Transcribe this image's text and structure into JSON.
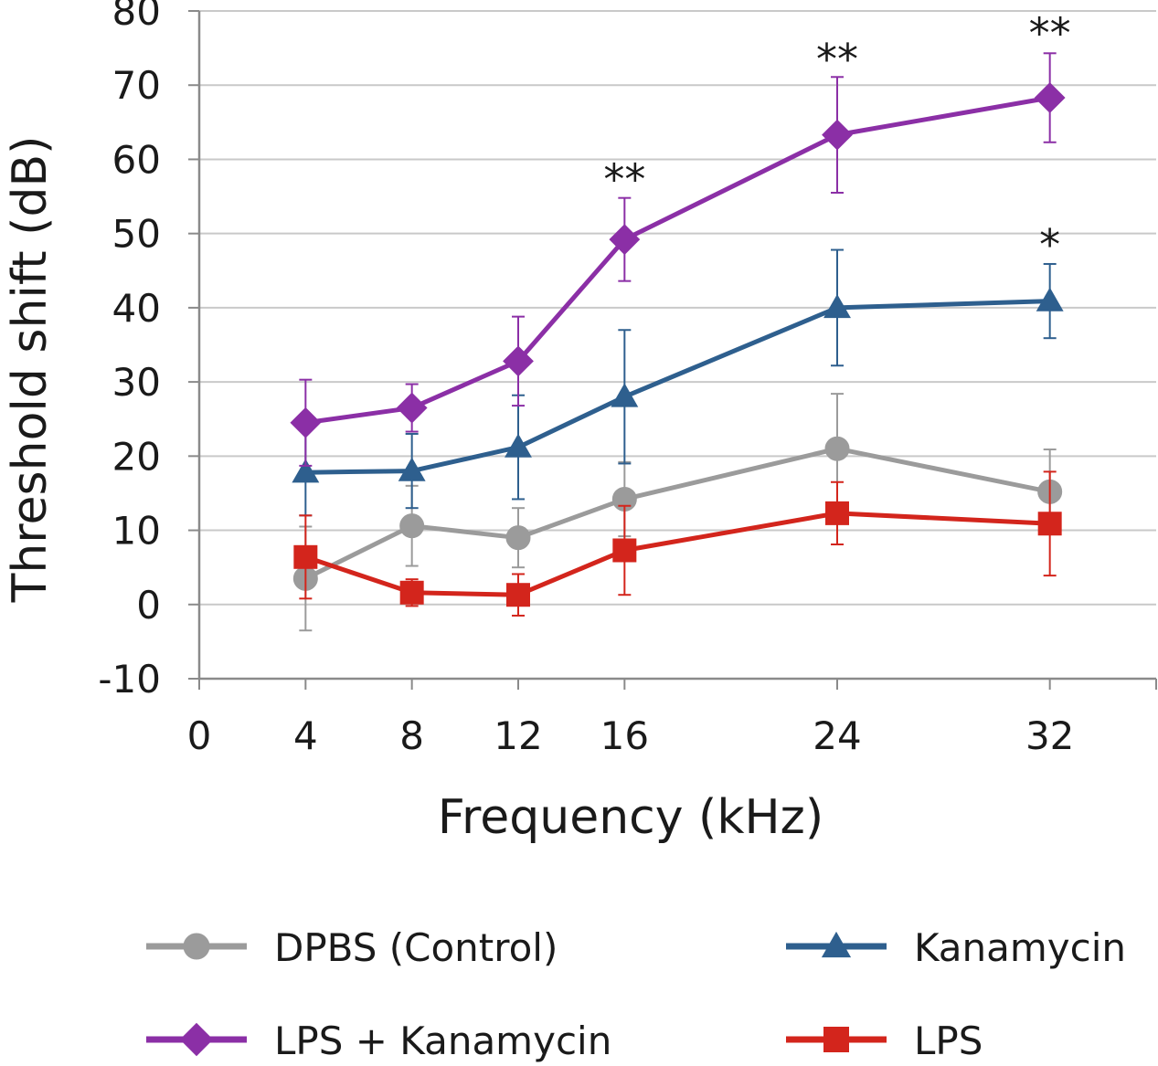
{
  "chart_data": {
    "type": "line",
    "title": "",
    "xlabel": "Frequency (kHz)",
    "ylabel": "Threshold shift (dB)",
    "xlim": [
      0,
      36
    ],
    "ylim": [
      -10,
      80
    ],
    "xticks": [
      0,
      4,
      8,
      12,
      16,
      24,
      32
    ],
    "yticks": [
      -10,
      0,
      10,
      20,
      30,
      40,
      50,
      60,
      70,
      80
    ],
    "grid": true,
    "x": [
      4,
      8,
      12,
      16,
      24,
      32
    ],
    "series": [
      {
        "name": "DPBS (Control)",
        "color": "#9b9b9b",
        "marker": "circle",
        "values": [
          3.5,
          10.6,
          9.0,
          14.2,
          21.0,
          15.2
        ],
        "errors": [
          7.0,
          5.4,
          4.0,
          5.0,
          7.4,
          5.7
        ]
      },
      {
        "name": "Kanamycin",
        "color": "#2e5f8e",
        "marker": "triangle",
        "values": [
          17.8,
          18.0,
          21.2,
          28.0,
          40.0,
          40.9
        ],
        "errors": [
          5.8,
          5.0,
          7.0,
          9.0,
          7.8,
          5.0
        ]
      },
      {
        "name": "LPS + Kanamycin",
        "color": "#8b2fa6",
        "marker": "diamond",
        "values": [
          24.5,
          26.5,
          32.8,
          49.2,
          63.3,
          68.3
        ],
        "errors": [
          5.8,
          3.2,
          6.0,
          5.6,
          7.8,
          6.0
        ]
      },
      {
        "name": "LPS",
        "color": "#d3251c",
        "marker": "square",
        "values": [
          6.4,
          1.6,
          1.3,
          7.3,
          12.3,
          10.9
        ],
        "errors": [
          5.6,
          1.8,
          2.8,
          6.0,
          4.2,
          7.0
        ]
      }
    ],
    "annotations": [
      {
        "x": 16,
        "y": 54.8,
        "text": "**"
      },
      {
        "x": 24,
        "y": 71.0,
        "text": "**"
      },
      {
        "x": 32,
        "y": 74.5,
        "text": "**"
      },
      {
        "x": 32,
        "y": 46.0,
        "text": "*"
      }
    ],
    "legend": {
      "position": "bottom",
      "order": [
        "DPBS (Control)",
        "Kanamycin",
        "LPS + Kanamycin",
        "LPS"
      ]
    }
  }
}
